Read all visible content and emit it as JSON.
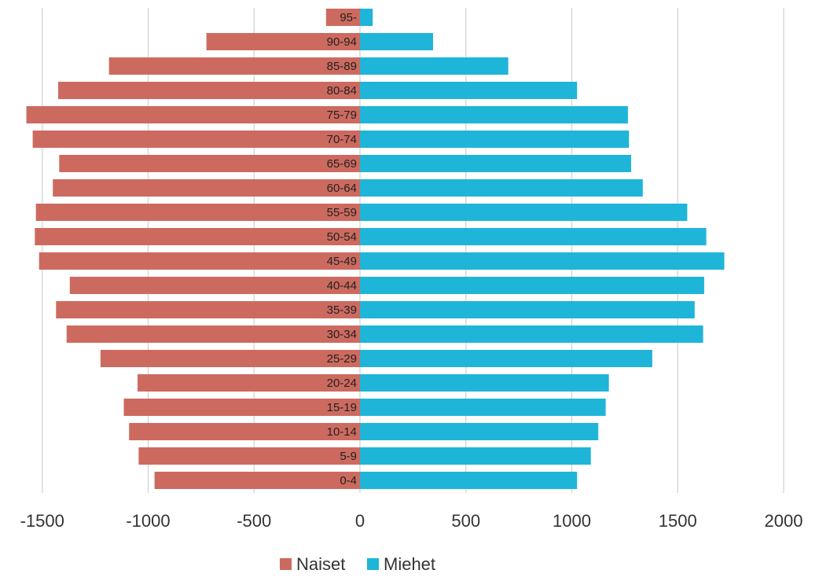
{
  "chart_data": {
    "type": "bar",
    "orientation": "horizontal",
    "title": "",
    "xlabel": "",
    "ylabel": "",
    "categories": [
      "0-4",
      "5-9",
      "10-14",
      "15-19",
      "20-24",
      "25-29",
      "30-34",
      "35-39",
      "40-44",
      "45-49",
      "50-54",
      "55-59",
      "60-64",
      "65-69",
      "70-74",
      "75-79",
      "80-84",
      "85-89",
      "90-94",
      "95-"
    ],
    "series": [
      {
        "name": "Naiset",
        "color": "#cd6a5f",
        "values": [
          -970,
          -1045,
          -1090,
          -1115,
          -1050,
          -1225,
          -1385,
          -1435,
          -1370,
          -1515,
          -1535,
          -1530,
          -1450,
          -1420,
          -1545,
          -1575,
          -1425,
          -1185,
          -725,
          -160
        ]
      },
      {
        "name": "Miehet",
        "color": "#1fb5d8",
        "values": [
          1025,
          1090,
          1125,
          1160,
          1175,
          1380,
          1620,
          1580,
          1625,
          1720,
          1635,
          1545,
          1335,
          1280,
          1270,
          1265,
          1025,
          700,
          345,
          60
        ]
      }
    ],
    "xlim": [
      -1500,
      2000
    ],
    "xticks": [
      -1500,
      -1000,
      -500,
      0,
      500,
      1000,
      1500,
      2000
    ],
    "xtick_labels": [
      "-1500",
      "-1000",
      "-500",
      "0",
      "500",
      "1000",
      "1500",
      "2000"
    ],
    "grid": true,
    "legend": "bottom"
  }
}
